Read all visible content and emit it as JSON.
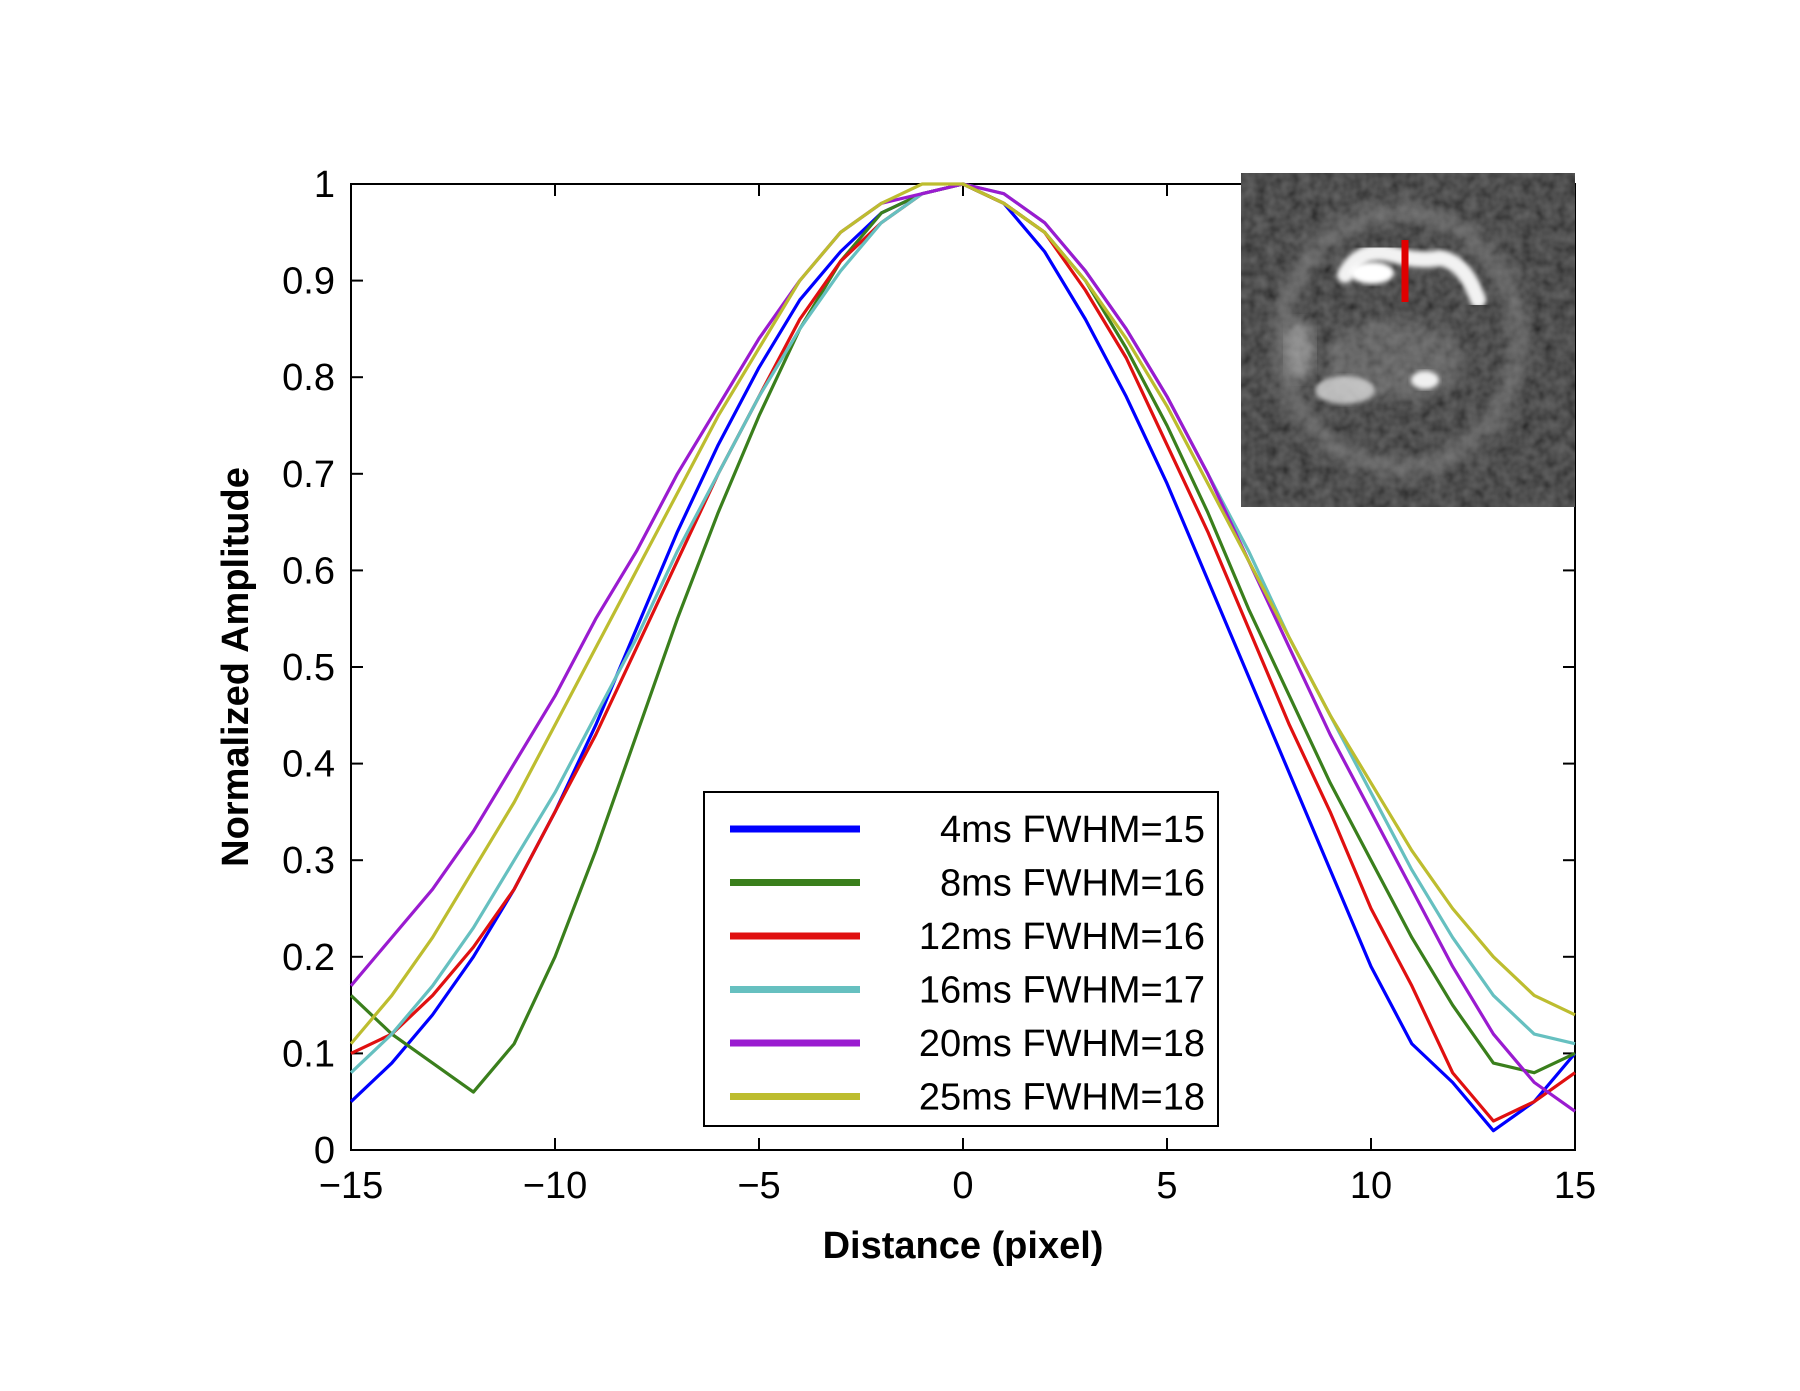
{
  "chart_data": {
    "type": "line",
    "title": "",
    "xlabel": "Distance (pixel)",
    "ylabel": "Normalized Amplitude",
    "xlim": [
      -15,
      15
    ],
    "ylim": [
      0,
      1
    ],
    "xticks": [
      -15,
      -10,
      -5,
      0,
      5,
      10,
      15
    ],
    "xtick_labels": [
      "−15",
      "−10",
      "−5",
      "0",
      "5",
      "10",
      "15"
    ],
    "yticks": [
      0,
      0.1,
      0.2,
      0.3,
      0.4,
      0.5,
      0.6,
      0.7,
      0.8,
      0.9,
      1
    ],
    "ytick_labels": [
      "0",
      "0.1",
      "0.2",
      "0.3",
      "0.4",
      "0.5",
      "0.6",
      "0.7",
      "0.8",
      "0.9",
      "1"
    ],
    "grid": false,
    "legend_position": "bottom-center",
    "x": [
      -15,
      -14,
      -13,
      -12,
      -11,
      -10,
      -9,
      -8,
      -7,
      -6,
      -5,
      -4,
      -3,
      -2,
      -1,
      0,
      1,
      2,
      3,
      4,
      5,
      6,
      7,
      8,
      9,
      10,
      11,
      12,
      13,
      14,
      15
    ],
    "series": [
      {
        "name": "4ms FWHM=15",
        "color": "#0000ff",
        "values": [
          0.05,
          0.09,
          0.14,
          0.2,
          0.27,
          0.35,
          0.44,
          0.54,
          0.64,
          0.73,
          0.81,
          0.88,
          0.93,
          0.97,
          0.99,
          1.0,
          0.98,
          0.93,
          0.86,
          0.78,
          0.69,
          0.59,
          0.49,
          0.39,
          0.29,
          0.19,
          0.11,
          0.07,
          0.02,
          0.05,
          0.1
        ]
      },
      {
        "name": "8ms FWHM=16",
        "color": "#3a7f1c",
        "values": [
          0.16,
          0.12,
          0.09,
          0.06,
          0.11,
          0.2,
          0.31,
          0.43,
          0.55,
          0.66,
          0.76,
          0.85,
          0.92,
          0.97,
          0.99,
          1.0,
          0.98,
          0.95,
          0.9,
          0.83,
          0.75,
          0.66,
          0.56,
          0.47,
          0.38,
          0.3,
          0.22,
          0.15,
          0.09,
          0.08,
          0.1
        ]
      },
      {
        "name": "12ms FWHM=16",
        "color": "#e01010",
        "values": [
          0.1,
          0.12,
          0.16,
          0.21,
          0.27,
          0.35,
          0.43,
          0.52,
          0.61,
          0.7,
          0.78,
          0.86,
          0.92,
          0.96,
          0.99,
          1.0,
          0.98,
          0.95,
          0.89,
          0.82,
          0.73,
          0.64,
          0.54,
          0.44,
          0.35,
          0.25,
          0.17,
          0.08,
          0.03,
          0.05,
          0.08
        ]
      },
      {
        "name": "16ms FWHM=17",
        "color": "#66c0c0",
        "values": [
          0.08,
          0.12,
          0.17,
          0.23,
          0.3,
          0.37,
          0.45,
          0.53,
          0.62,
          0.7,
          0.78,
          0.85,
          0.91,
          0.96,
          0.99,
          1.0,
          0.99,
          0.96,
          0.91,
          0.85,
          0.78,
          0.7,
          0.62,
          0.53,
          0.45,
          0.37,
          0.29,
          0.22,
          0.16,
          0.12,
          0.11
        ]
      },
      {
        "name": "20ms FWHM=18",
        "color": "#9a1bd0",
        "values": [
          0.17,
          0.22,
          0.27,
          0.33,
          0.4,
          0.47,
          0.55,
          0.62,
          0.7,
          0.77,
          0.84,
          0.9,
          0.95,
          0.98,
          0.99,
          1.0,
          0.99,
          0.96,
          0.91,
          0.85,
          0.78,
          0.7,
          0.61,
          0.52,
          0.43,
          0.35,
          0.27,
          0.19,
          0.12,
          0.07,
          0.04
        ]
      },
      {
        "name": "25ms FWHM=18",
        "color": "#bdbd2f",
        "values": [
          0.11,
          0.16,
          0.22,
          0.29,
          0.36,
          0.44,
          0.52,
          0.6,
          0.68,
          0.76,
          0.83,
          0.9,
          0.95,
          0.98,
          1.0,
          1.0,
          0.98,
          0.95,
          0.9,
          0.84,
          0.77,
          0.69,
          0.61,
          0.53,
          0.45,
          0.38,
          0.31,
          0.25,
          0.2,
          0.16,
          0.14
        ]
      }
    ]
  }
}
